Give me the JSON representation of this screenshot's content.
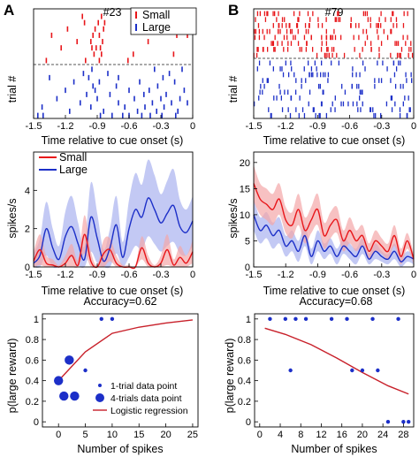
{
  "figure": {
    "panel_a": "A",
    "panel_b": "B",
    "raster_a_title": "#23",
    "raster_b_title": "#79",
    "raster_ylabel": "trial #",
    "time_xlabel": "Time relative to cue onset (s)",
    "rate_ylabel": "spikes/s",
    "legend_small": "Small",
    "legend_large": "Large",
    "accuracy_a": "Accuracy=0.62",
    "accuracy_b": "Accuracy=0.68",
    "pred_ylabel": "p(large reward)",
    "pred_xlabel": "Number of spikes",
    "legend_1trial": "1-trial data point",
    "legend_4trial": "4-trials data point",
    "legend_logistic": "Logistic regression",
    "colors": {
      "small": "#e8161a",
      "large": "#1c2fc8",
      "small_band": "#f4a6a8",
      "large_band": "#aab2f0",
      "dashed": "#555555"
    }
  },
  "chart_data": [
    {
      "id": "raster_a",
      "type": "scatter",
      "title": "#23",
      "xlabel": "Time relative to cue onset (s)",
      "ylabel": "trial #",
      "xlim": [
        -1.5,
        0
      ],
      "xticks": [
        "-1.5",
        "-1.2",
        "-0.9",
        "-0.6",
        "-0.3",
        "0"
      ],
      "legend": [
        "Small",
        "Large"
      ],
      "series": [
        {
          "name": "Small",
          "trials": [
            [
              -1.04,
              -0.86,
              -0.26
            ],
            [
              -1.02,
              -0.89,
              -0.83,
              -0.32
            ],
            [
              -1.18,
              -0.92,
              -0.84
            ],
            [
              -1.33,
              -0.94,
              -0.88,
              -0.15,
              -0.05
            ],
            [
              -1.09,
              -0.96,
              -0.85,
              -0.42
            ],
            [
              -1.24,
              -0.95,
              -0.91,
              -0.87
            ],
            [
              -0.93,
              -0.86,
              -0.56,
              -0.18
            ],
            [
              -1.38,
              -1.01,
              -0.88,
              -0.61
            ]
          ]
        },
        {
          "name": "Large",
          "trials": [
            [
              -0.95,
              -0.36,
              -0.1
            ],
            [
              -1.03,
              -0.8,
              -0.22
            ],
            [
              -1.35,
              -0.98,
              -0.7,
              -0.28
            ],
            [
              -1.12,
              -0.88,
              -0.5,
              -0.17
            ],
            [
              -0.94,
              -0.72,
              -0.33
            ],
            [
              -1.2,
              -0.92,
              -0.6,
              -0.41,
              -0.08
            ],
            [
              -1.0,
              -0.78,
              -0.46,
              -0.25
            ],
            [
              -1.28,
              -0.9,
              -0.55,
              -0.3,
              -0.12
            ],
            [
              -1.06,
              -0.7,
              -0.38,
              -0.2,
              -0.05
            ],
            [
              -1.42,
              -0.96,
              -0.64,
              -0.45,
              -0.27
            ],
            [
              -1.16,
              -0.84,
              -0.52,
              -0.34,
              -0.14
            ],
            [
              -1.46,
              -1.41,
              -0.87,
              -0.76,
              -0.66,
              -0.6,
              -0.48,
              -0.4,
              -0.29,
              -0.16
            ]
          ]
        }
      ],
      "threshold_dashed": true
    },
    {
      "id": "raster_b",
      "type": "scatter",
      "title": "#79",
      "xlabel": "Time relative to cue onset (s)",
      "ylabel": "trial #",
      "xlim": [
        -1.5,
        0
      ],
      "xticks": [
        "-1.5",
        "-1.2",
        "-0.9",
        "-0.6",
        "-0.3",
        "0"
      ],
      "series": [
        {
          "name": "Small",
          "trials": 8,
          "pattern": "dense, slightly denser early"
        },
        {
          "name": "Large",
          "trials": 10,
          "pattern": "moderately dense"
        }
      ],
      "threshold_dashed": true
    },
    {
      "id": "rate_a",
      "type": "line",
      "ylabel": "spikes/s",
      "xlabel": "Time relative to cue onset (s)",
      "xlim": [
        -1.5,
        0
      ],
      "ylim": [
        0,
        6
      ],
      "xticks": [
        "-1.5",
        "-1.2",
        "-0.9",
        "-0.6",
        "-0.3",
        "0"
      ],
      "yticks": [
        "0",
        "2",
        "4"
      ],
      "legend": [
        "Small",
        "Large"
      ],
      "x": [
        -1.5,
        -1.44,
        -1.38,
        -1.32,
        -1.26,
        -1.2,
        -1.14,
        -1.08,
        -1.02,
        -0.96,
        -0.9,
        -0.84,
        -0.78,
        -0.72,
        -0.66,
        -0.6,
        -0.54,
        -0.48,
        -0.42,
        -0.36,
        -0.3,
        -0.24,
        -0.18,
        -0.12,
        -0.06,
        0
      ],
      "series": [
        {
          "name": "Small",
          "values": [
            0.3,
            0.9,
            0.2,
            0.1,
            0.0,
            0.2,
            0.6,
            0.1,
            1.7,
            0.3,
            0.0,
            0.7,
            0.9,
            0.2,
            0.0,
            0.0,
            0.0,
            1.0,
            0.2,
            0.0,
            0.2,
            0.9,
            0.1,
            0.5,
            0.2,
            0.8
          ],
          "band": [
            0.5,
            0.8,
            0.4,
            0.3,
            0.1,
            0.4,
            0.6,
            0.3,
            1.0,
            0.5,
            0.1,
            0.7,
            0.6,
            0.4,
            0.1,
            0.1,
            0.1,
            0.6,
            0.4,
            0.1,
            0.4,
            0.8,
            0.3,
            0.6,
            0.4,
            0.6
          ]
        },
        {
          "name": "Large",
          "values": [
            0.2,
            0.6,
            2.0,
            1.0,
            0.4,
            1.6,
            2.1,
            1.2,
            0.4,
            2.6,
            1.5,
            0.3,
            1.0,
            2.2,
            0.5,
            2.0,
            3.0,
            2.6,
            3.6,
            3.0,
            2.3,
            2.8,
            3.2,
            2.1,
            1.8,
            2.4
          ],
          "band": [
            0.5,
            0.9,
            1.4,
            1.0,
            0.7,
            1.3,
            1.6,
            1.1,
            0.7,
            1.8,
            1.3,
            0.6,
            1.0,
            1.5,
            0.8,
            1.5,
            1.9,
            1.7,
            2.0,
            1.8,
            1.5,
            1.7,
            1.9,
            1.4,
            1.2,
            1.3
          ]
        }
      ]
    },
    {
      "id": "rate_b",
      "type": "line",
      "ylabel": "spikes/s",
      "xlabel": "Time relative to cue onset (s)",
      "xlim": [
        -1.5,
        0
      ],
      "ylim": [
        0,
        22
      ],
      "xticks": [
        "-1.5",
        "-1.2",
        "-0.9",
        "-0.6",
        "-0.3",
        "0"
      ],
      "yticks": [
        "0",
        "5",
        "10",
        "15",
        "20"
      ],
      "x": [
        -1.5,
        -1.44,
        -1.38,
        -1.32,
        -1.26,
        -1.2,
        -1.14,
        -1.08,
        -1.02,
        -0.96,
        -0.9,
        -0.84,
        -0.78,
        -0.72,
        -0.66,
        -0.6,
        -0.54,
        -0.48,
        -0.42,
        -0.36,
        -0.3,
        -0.24,
        -0.18,
        -0.12,
        -0.06,
        0
      ],
      "series": [
        {
          "name": "Small",
          "values": [
            16,
            13,
            12,
            11,
            13,
            9,
            8,
            11,
            7,
            9,
            11,
            6,
            8,
            9,
            5,
            7,
            5,
            6,
            3,
            5,
            4,
            3,
            6,
            2,
            5,
            1.5
          ],
          "band": [
            3.5,
            3,
            3,
            3,
            3,
            2.5,
            2.5,
            3,
            2.5,
            2.5,
            3,
            2.5,
            2.5,
            2.5,
            2,
            2.5,
            2,
            2,
            1.5,
            2,
            1.5,
            1.5,
            2,
            1.5,
            1.5,
            1
          ]
        },
        {
          "name": "Large",
          "values": [
            10,
            7,
            8,
            6,
            7,
            4,
            5,
            3,
            6,
            2,
            5,
            3,
            4,
            2,
            4,
            3,
            2,
            4,
            1.5,
            3,
            2,
            1.5,
            3,
            1,
            2,
            1.5
          ],
          "band": [
            3,
            2.5,
            2.5,
            2.5,
            2.5,
            2,
            2,
            2,
            2,
            1.5,
            2,
            1.5,
            1.5,
            1.5,
            1.5,
            1.5,
            1.5,
            1.5,
            1,
            1.5,
            1,
            1,
            1.5,
            1,
            1,
            1
          ]
        }
      ]
    },
    {
      "id": "pred_a",
      "type": "scatter",
      "title": "Accuracy=0.62",
      "xlabel": "Number of spikes",
      "ylabel": "p(large reward)",
      "xlim": [
        -3,
        26
      ],
      "ylim": [
        -0.05,
        1.05
      ],
      "xticks": [
        "0",
        "5",
        "10",
        "15",
        "20",
        "25"
      ],
      "yticks": [
        "0",
        "0.2",
        "0.4",
        "0.6",
        "0.8",
        "1"
      ],
      "points_1trial": [
        [
          5,
          0.5
        ],
        [
          8,
          1
        ],
        [
          10,
          1
        ]
      ],
      "points_4trial": [
        [
          0,
          0.4
        ],
        [
          1,
          0.25
        ],
        [
          2,
          0.6
        ],
        [
          3,
          0.25
        ]
      ],
      "logistic": {
        "x": [
          0,
          5,
          10,
          15,
          20,
          25
        ],
        "y": [
          0.4,
          0.68,
          0.86,
          0.92,
          0.96,
          0.99
        ]
      }
    },
    {
      "id": "pred_b",
      "type": "scatter",
      "title": "Accuracy=0.68",
      "xlabel": "Number of spikes",
      "ylabel": "p(large reward)",
      "xlim": [
        -1,
        30
      ],
      "ylim": [
        -0.05,
        1.05
      ],
      "xticks": [
        "0",
        "4",
        "8",
        "12",
        "16",
        "20",
        "24",
        "28"
      ],
      "yticks": [
        "0",
        "0.2",
        "0.4",
        "0.6",
        "0.8",
        "1"
      ],
      "points_1trial": [
        [
          2,
          1
        ],
        [
          5,
          1
        ],
        [
          6,
          0.5
        ],
        [
          7,
          1
        ],
        [
          9,
          1
        ],
        [
          14,
          1
        ],
        [
          17,
          1
        ],
        [
          18,
          0.5
        ],
        [
          20,
          0.5
        ],
        [
          22,
          1
        ],
        [
          23,
          0.5
        ],
        [
          25,
          0
        ],
        [
          27,
          1
        ],
        [
          28,
          0
        ],
        [
          29,
          0
        ]
      ],
      "logistic": {
        "x": [
          1,
          5,
          10,
          15,
          20,
          25,
          29
        ],
        "y": [
          0.91,
          0.85,
          0.75,
          0.62,
          0.48,
          0.35,
          0.27
        ]
      }
    }
  ]
}
